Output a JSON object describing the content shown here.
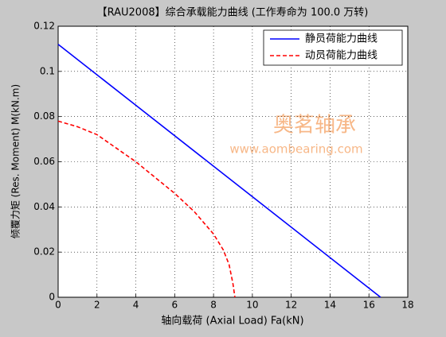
{
  "chart_data": {
    "type": "line",
    "title": "【RAU2008】综合承载能力曲线 (工作寿命为 100.0 万转)",
    "xlabel": "轴向载荷 (Axial Load) Fa(kN)",
    "ylabel": "倾覆力矩 (Res. Moment) M(kN.m)",
    "watermark": [
      "奥茗轴承",
      "www.aombearing.com"
    ],
    "xlim": [
      0,
      18
    ],
    "xticks": [
      0,
      2,
      4,
      6,
      8,
      10,
      12,
      14,
      16,
      18
    ],
    "ylim": [
      0,
      0.12
    ],
    "yticks": [
      0,
      0.02,
      0.04,
      0.06,
      0.08,
      0.1,
      0.12
    ],
    "grid": true,
    "legend": "upper right",
    "series": [
      {
        "name": "静员荷能力曲线",
        "color": "#0000ff",
        "dash": false,
        "x": [
          0,
          16.6
        ],
        "values": [
          0.112,
          0
        ]
      },
      {
        "name": "动员荷能力曲线",
        "color": "#ff0000",
        "dash": true,
        "x": [
          0,
          1,
          2,
          3,
          4,
          5,
          6,
          7,
          8,
          8.5,
          8.8,
          9.0,
          9.1
        ],
        "values": [
          0.078,
          0.0755,
          0.072,
          0.066,
          0.06,
          0.053,
          0.046,
          0.038,
          0.028,
          0.021,
          0.0145,
          0.006,
          0
        ]
      }
    ]
  }
}
